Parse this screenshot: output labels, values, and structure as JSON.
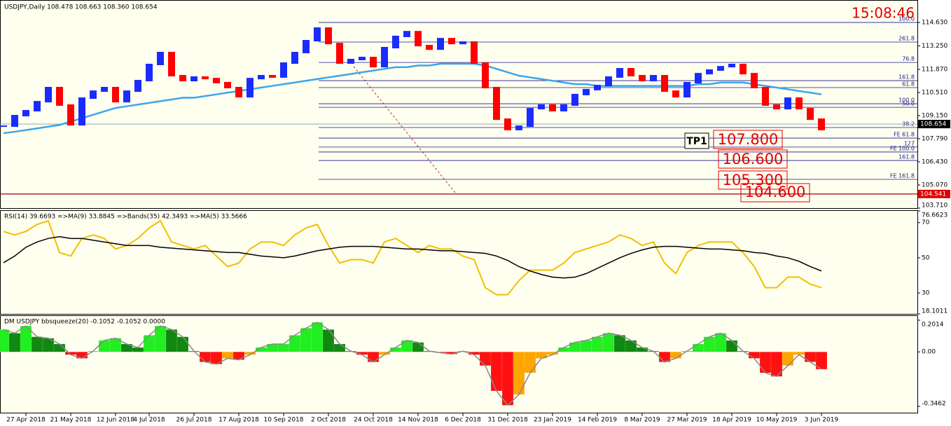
{
  "chart_data": [
    {
      "type": "candlestick",
      "title": "USDJPY,Daily  108.478 108.663 108.360 108.654",
      "clock": "15:08:46",
      "annotations": [
        "TP1",
        "107.800",
        "106.600",
        "105.300",
        "104.600"
      ],
      "values": [
        108.53,
        109.15,
        109.44,
        109.97,
        110.8,
        109.77,
        108.61,
        110.18,
        110.59,
        110.8,
        109.97,
        110.59,
        111.21,
        112.16,
        112.86,
        111.5,
        111.21,
        111.42,
        111.33,
        111.09,
        110.8,
        110.26,
        111.33,
        111.5,
        111.42,
        112.24,
        112.86,
        113.56,
        114.3,
        113.39,
        112.24,
        112.45,
        112.57,
        112.03,
        113.15,
        113.81,
        114.09,
        113.27,
        113.06,
        113.68,
        113.39,
        113.48,
        112.24,
        110.8,
        108.94,
        108.33,
        108.53,
        109.56,
        109.77,
        109.44,
        109.77,
        110.39,
        110.68,
        110.92,
        111.42,
        111.91,
        111.5,
        111.21,
        111.5,
        110.59,
        110.26,
        111.09,
        111.62,
        111.83,
        112.03,
        112.16,
        111.62,
        110.8,
        109.77,
        109.56,
        110.18,
        109.56,
        108.94,
        108.33
      ],
      "colors": {
        "up": "#1a2bff",
        "down": "#ff0000"
      },
      "series": [
        {
          "color": "#3aa6ec",
          "values": [
            108.12,
            108.2,
            108.3,
            108.4,
            108.5,
            108.6,
            108.8,
            109.0,
            109.2,
            109.4,
            109.6,
            109.7,
            109.8,
            109.9,
            110.0,
            110.1,
            110.2,
            110.2,
            110.3,
            110.4,
            110.5,
            110.6,
            110.7,
            110.8,
            110.9,
            111.0,
            111.1,
            111.2,
            111.3,
            111.4,
            111.5,
            111.6,
            111.7,
            111.8,
            111.9,
            112.0,
            112.0,
            112.1,
            112.1,
            112.2,
            112.2,
            112.2,
            112.2,
            112.1,
            111.9,
            111.7,
            111.5,
            111.4,
            111.3,
            111.2,
            111.1,
            111.0,
            111.0,
            110.9,
            110.9,
            110.9,
            110.9,
            110.9,
            110.9,
            110.9,
            110.9,
            110.9,
            111.0,
            111.0,
            111.1,
            111.1,
            111.1,
            111.0,
            110.9,
            110.8,
            110.7,
            110.6,
            110.5,
            110.4
          ]
        }
      ],
      "levels": [
        {
          "label": "100.0",
          "value": 114.63
        },
        {
          "label": "261.8",
          "value": 113.48
        },
        {
          "label": "76.8",
          "value": 112.28
        },
        {
          "label": "161.8",
          "value": 111.21
        },
        {
          "label": "61.8",
          "value": 110.8
        },
        {
          "label": "100.0",
          "value": 109.85
        },
        {
          "label": "50.0",
          "value": 109.64
        },
        {
          "label": "38.2",
          "value": 108.45
        },
        {
          "label": "FE 61.8",
          "value": 107.83
        },
        {
          "label": "127",
          "value": 107.3
        },
        {
          "label": "FE 100.0",
          "value": 107.01
        },
        {
          "label": "161.8",
          "value": 106.51
        },
        {
          "label": "FE 161.8",
          "value": 105.4
        }
      ],
      "last_price": 108.654,
      "support": 104.541,
      "ylim": [
        103.71,
        115.87
      ],
      "yticks": [
        {
          "value": 114.63,
          "label": "114.630"
        },
        {
          "value": 113.25,
          "label": "113.250"
        },
        {
          "value": 111.87,
          "label": "111.870"
        },
        {
          "value": 110.51,
          "label": "110.510"
        },
        {
          "value": 109.15,
          "label": "109.150"
        },
        {
          "value": 107.79,
          "label": "107.790"
        },
        {
          "value": 106.43,
          "label": "106.430"
        },
        {
          "value": 105.07,
          "label": "105.070"
        },
        {
          "value": 103.71,
          "label": "103.710"
        }
      ]
    },
    {
      "type": "line",
      "title": "RSI(14) 39.6693  =>MA(9) 33.8845  =>Bands(35) 42.3493  =>MA(5) 33.5666",
      "series": [
        {
          "color": "#f0c000",
          "values": [
            65,
            63,
            65,
            69,
            71,
            53,
            51,
            61,
            63,
            61,
            55,
            57,
            61,
            67,
            71,
            59,
            57,
            55,
            57,
            51,
            45,
            47,
            55,
            59,
            59,
            57,
            63,
            67,
            69,
            57,
            47,
            49,
            49,
            47,
            59,
            61,
            57,
            53,
            57,
            55,
            55,
            51,
            49,
            33,
            29,
            29,
            37,
            43,
            43,
            43,
            47,
            53,
            55,
            57,
            59,
            63,
            61,
            57,
            59,
            47,
            41,
            53,
            57,
            59,
            59,
            59,
            53,
            45,
            33,
            33,
            39,
            39,
            35,
            33
          ]
        },
        {
          "color": "#000000",
          "values": [
            47.2,
            51,
            56,
            59,
            61,
            62,
            61,
            61,
            60,
            59,
            58,
            57,
            57,
            57,
            56,
            55.5,
            55,
            54.5,
            54,
            53.5,
            53,
            53,
            52,
            51,
            50.5,
            50,
            51,
            52.5,
            54,
            55,
            56,
            56.5,
            56.5,
            56.5,
            56,
            55.5,
            55,
            55,
            54.5,
            54,
            54,
            53.5,
            53,
            52.5,
            51,
            48.5,
            45,
            42.5,
            40.5,
            39,
            38.5,
            39,
            41,
            44,
            47,
            50,
            52.5,
            54.5,
            56,
            56.5,
            56.5,
            56,
            55.5,
            55,
            55,
            54.5,
            54,
            53,
            52.5,
            51,
            50,
            48,
            45,
            42.5
          ]
        }
      ],
      "ylim": [
        18.1011,
        76.6623
      ],
      "yticks": [
        76.6623,
        70,
        50,
        30,
        18.1011
      ]
    },
    {
      "type": "bar",
      "title": "DM USDJPY bbsqueeze(20) -0.1052 -0.1052 0.0000",
      "categories": [
        null,
        null,
        "27 Apr 2018",
        null,
        null,
        null,
        "21 May 2018",
        null,
        null,
        null,
        "12 Jun 2018",
        null,
        null,
        "4 Jul 2018",
        null,
        null,
        null,
        "26 Jul 2018",
        null,
        null,
        null,
        "17 Aug 2018",
        null,
        null,
        null,
        "10 Sep 2018",
        null,
        null,
        null,
        "2 Oct 2018",
        null,
        null,
        null,
        "24 Oct 2018",
        null,
        null,
        null,
        "14 Nov 2018",
        null,
        null,
        null,
        "6 Dec 2018",
        null,
        null,
        null,
        "31 Dec 2018",
        null,
        null,
        null,
        "23 Jan 2019",
        null,
        null,
        null,
        "14 Feb 2019",
        null,
        null,
        null,
        "8 Mar 2019",
        null,
        null,
        null,
        "27 Mar 2019",
        null,
        null,
        null,
        "18 Apr 2019",
        null,
        null,
        null,
        "10 May 2019",
        null,
        null,
        null,
        "3 Jun 2019"
      ],
      "values": [
        0.142,
        0.119,
        0.165,
        0.096,
        0.087,
        0.05,
        -0.018,
        -0.041,
        0.005,
        0.073,
        0.087,
        0.05,
        0.028,
        0.106,
        0.165,
        0.142,
        0.096,
        0.005,
        -0.064,
        -0.078,
        -0.041,
        -0.05,
        -0.018,
        0.028,
        0.05,
        0.05,
        0.106,
        0.151,
        0.188,
        0.142,
        0.05,
        0.005,
        -0.018,
        -0.064,
        -0.018,
        0.028,
        0.073,
        0.06,
        0.005,
        -0.005,
        -0.014,
        0.005,
        -0.018,
        -0.087,
        -0.248,
        -0.339,
        -0.271,
        -0.133,
        -0.041,
        -0.018,
        0.028,
        0.06,
        0.073,
        0.096,
        0.119,
        0.106,
        0.073,
        0.028,
        0.005,
        -0.064,
        -0.041,
        0.005,
        0.05,
        0.096,
        0.119,
        0.073,
        0.005,
        -0.041,
        -0.133,
        -0.156,
        -0.087,
        -0.018,
        -0.064,
        -0.11
      ],
      "colors": [
        "#22ee22",
        "#118811",
        "#ff1111",
        "#ffa500"
      ],
      "ylim": [
        -0.3462,
        0.2014
      ],
      "yticks": [
        0.2014,
        {
          "value": 0,
          "label": "0.00"
        },
        -0.3462
      ]
    }
  ]
}
